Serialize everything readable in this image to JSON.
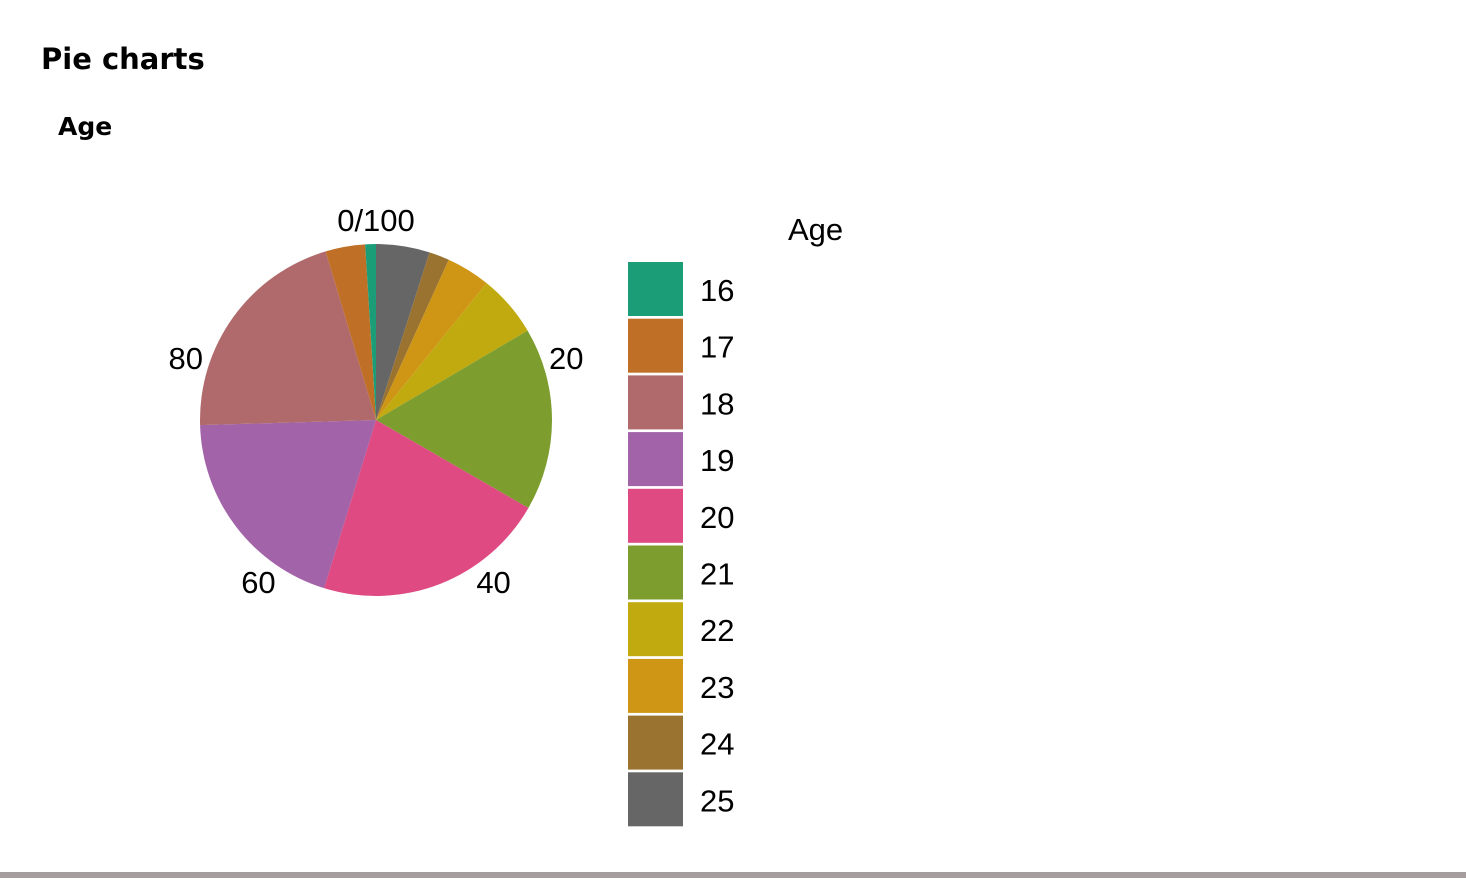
{
  "page": {
    "section_title": "Pie charts",
    "chart_heading": "Age"
  },
  "chart_data": {
    "type": "pie",
    "title": "",
    "theta_tick_labels": [
      "0/100",
      "20",
      "40",
      "60",
      "80"
    ],
    "legend": {
      "title": "Age",
      "placement": "right"
    },
    "categories": [
      "16",
      "17",
      "18",
      "19",
      "20",
      "21",
      "22",
      "23",
      "24",
      "25"
    ],
    "values": [
      1.0,
      3.7,
      21.2,
      20.1,
      21.8,
      17.1,
      5.8,
      4.1,
      1.9,
      5.0
    ],
    "colors": [
      "#1b9e77",
      "#c07026",
      "#b06a6c",
      "#a263a8",
      "#de4a81",
      "#7d9e2f",
      "#c1aa0f",
      "#ce9614",
      "#9a7331",
      "#666666"
    ]
  }
}
